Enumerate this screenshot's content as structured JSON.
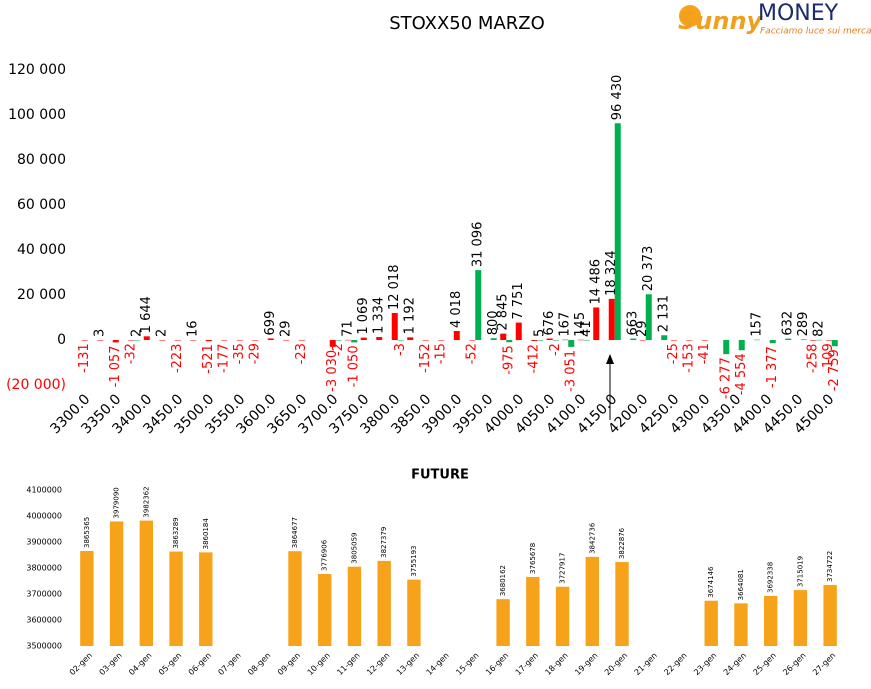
{
  "logo": {
    "brand1": "Sunny",
    "brand2": "MONEY",
    "tagline": "Facciamo luce sui mercati"
  },
  "chart_data": [
    {
      "type": "bar",
      "title": "STOXX50 MARZO",
      "categories": [
        "3300.0",
        null,
        "3350.0",
        null,
        "3400.0",
        null,
        "3450.0",
        null,
        "3500.0",
        null,
        "3550.0",
        null,
        "3600.0",
        null,
        "3650.0",
        null,
        "3700.0",
        null,
        "3750.0",
        null,
        "3800.0",
        null,
        "3850.0",
        null,
        "3900.0",
        null,
        "3950.0",
        null,
        "4000.0",
        null,
        "4050.0",
        null,
        "4100.0",
        null,
        "4150.0",
        null,
        "4200.0",
        null,
        "4250.0",
        null,
        "4300.0",
        null,
        "4350.0",
        null,
        "4400.0",
        null,
        "4450.0",
        null,
        "4500.0"
      ],
      "series": [
        {
          "color": "#ff0000",
          "values": [
            -131,
            3,
            -1057,
            -32,
            1644,
            2,
            -223,
            16,
            -521,
            -177,
            -35,
            -29,
            699,
            29,
            -23,
            null,
            -3030,
            71,
            1069,
            1334,
            12018,
            1192,
            -152,
            -15,
            4018,
            -52,
            null,
            2845,
            7751,
            -412,
            676,
            167,
            145,
            14486,
            18324,
            null,
            29,
            null,
            -25,
            -153,
            -41,
            null,
            null,
            null,
            null,
            null,
            null,
            -258,
            -109
          ],
          "value_labels": [
            "-131",
            "3",
            "-1 057",
            "-32",
            "1 644",
            "2",
            "-223",
            "16",
            "-521",
            "-177",
            "-35",
            "-29",
            "699",
            "29",
            "-23",
            null,
            "-3 030",
            "71",
            "1 069",
            "1 334",
            "12 018",
            "1 192",
            "-152",
            "-15",
            "4 018",
            "-52",
            null,
            "2 845",
            "7 751",
            "-412",
            "676",
            "167",
            "145",
            "14 486",
            "18 324",
            null,
            "29",
            null,
            "-25",
            "-153",
            "-41",
            null,
            null,
            null,
            null,
            null,
            null,
            "-258",
            "-109"
          ]
        },
        {
          "color": "#00b050",
          "values": [
            null,
            null,
            null,
            2,
            null,
            null,
            null,
            null,
            null,
            null,
            null,
            null,
            null,
            null,
            null,
            null,
            -2,
            -1050,
            null,
            null,
            -3,
            null,
            null,
            null,
            null,
            31096,
            800,
            -975,
            null,
            5,
            -2,
            -3051,
            41,
            null,
            96430,
            663,
            20373,
            2131,
            null,
            null,
            null,
            -6277,
            -4554,
            157,
            -1377,
            632,
            289,
            82,
            -2759
          ],
          "value_labels": [
            null,
            null,
            null,
            "2",
            null,
            null,
            null,
            null,
            null,
            null,
            null,
            null,
            null,
            null,
            null,
            null,
            "-2",
            "-1 050",
            null,
            null,
            "-3",
            null,
            null,
            null,
            null,
            "31 096",
            "800",
            "-975",
            null,
            "5",
            "-2",
            "-3 051",
            "41",
            null,
            "96 430",
            "663",
            "20 373",
            "2 131",
            null,
            null,
            null,
            "-6 277",
            "-4 554",
            "157",
            "-1 377",
            "632",
            "289",
            "82",
            "-2 759"
          ]
        }
      ],
      "ylim": [
        -20000,
        125000
      ],
      "yticks": [
        {
          "value": -20000,
          "label": "(20 000)"
        },
        0,
        {
          "value": 20000,
          "label": "20 000"
        },
        {
          "value": 40000,
          "label": "40 000"
        },
        {
          "value": 60000,
          "label": "60 000"
        },
        {
          "value": 80000,
          "label": "80 000"
        },
        {
          "value": 100000,
          "label": "100 000"
        },
        {
          "value": 120000,
          "label": "120 000"
        }
      ],
      "negative_color": "#ff0000"
    },
    {
      "type": "bar",
      "title": "FUTURE",
      "color": "#f7a21b",
      "categories": [
        "02-gen",
        "03-gen",
        "04-gen",
        "05-gen",
        "06-gen",
        "07-gen",
        "08-gen",
        "09-gen",
        "10-gen",
        "11-gen",
        "12-gen",
        "13-gen",
        "14-gen",
        "15-gen",
        "16-gen",
        "17-gen",
        "18-gen",
        "19-gen",
        "20-gen",
        "21-gen",
        "22-gen",
        "23-gen",
        "24-gen",
        "25-gen",
        "26-gen",
        "27-gen"
      ],
      "values": [
        3865365,
        3979090,
        3982362,
        3863289,
        3860184,
        null,
        null,
        3864677,
        3776906,
        3805059,
        3827379,
        3755193,
        null,
        null,
        3680162,
        3765678,
        3727917,
        3842736,
        3822876,
        null,
        null,
        3674146,
        3664081,
        3692338,
        3715019,
        3734722
      ],
      "ylim": [
        3500000,
        4100000
      ],
      "yticks": [
        3500000,
        3600000,
        3700000,
        3800000,
        3900000,
        4000000,
        4100000
      ]
    }
  ]
}
